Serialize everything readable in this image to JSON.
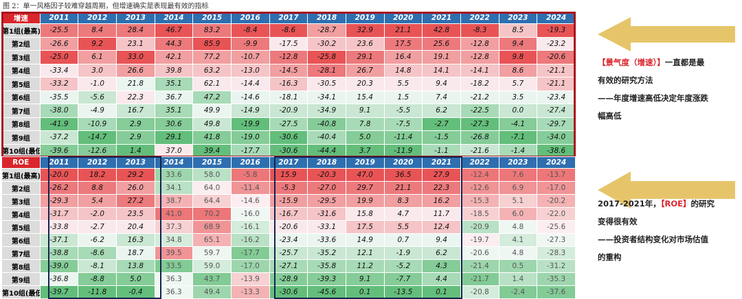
{
  "caption": "图 2：单一风格因子较难穿越周期，但增速确实是表现最有效的指标",
  "tables": [
    {
      "corner": "增速",
      "years": [
        "2011",
        "2012",
        "2013",
        "2014",
        "2015",
        "2016",
        "2017",
        "2018",
        "2019",
        "2020",
        "2021",
        "2022",
        "2023",
        "2024"
      ],
      "rows": [
        {
          "label": "第1组(最高)",
          "values": [
            "-25.5",
            "8.4",
            "28.4",
            "46.7",
            "83.2",
            "-8.4",
            "-8.6",
            "-28.7",
            "32.9",
            "21.1",
            "42.8",
            "-8.3",
            "8.5",
            "-19.3"
          ]
        },
        {
          "label": "第2组",
          "values": [
            "-26.6",
            "9.2",
            "23.1",
            "44.3",
            "85.9",
            "-9.9",
            "-17.5",
            "-30.2",
            "23.6",
            "17.5",
            "25.6",
            "-12.8",
            "9.4",
            "-23.2"
          ]
        },
        {
          "label": "第3组",
          "values": [
            "-25.0",
            "6.1",
            "33.0",
            "42.1",
            "77.2",
            "-10.7",
            "-12.8",
            "-25.8",
            "29.1",
            "16.4",
            "19.1",
            "-12.8",
            "9.8",
            "-20.6"
          ]
        },
        {
          "label": "第4组",
          "values": [
            "-33.4",
            "3.0",
            "26.6",
            "39.8",
            "63.2",
            "-13.0",
            "-14.5",
            "-28.1",
            "26.7",
            "14.8",
            "14.1",
            "-14.1",
            "8.6",
            "-21.1"
          ]
        },
        {
          "label": "第5组",
          "values": [
            "-33.2",
            "-1.0",
            "21.8",
            "35.1",
            "62.1",
            "-14.4",
            "-16.3",
            "-30.5",
            "20.3",
            "5.5",
            "9.4",
            "-18.2",
            "5.7",
            "-21.1"
          ]
        },
        {
          "label": "第6组",
          "values": [
            "-35.5",
            "-5.6",
            "22.3",
            "36.7",
            "47.2",
            "-14.6",
            "-18.1",
            "-34.1",
            "15.4",
            "1.5",
            "7.4",
            "-21.2",
            "3.5",
            "-23.4"
          ]
        },
        {
          "label": "第7组",
          "values": [
            "-38.0",
            "-4.9",
            "16.7",
            "35.1",
            "49.9",
            "-14.9",
            "-20.9",
            "-34.9",
            "9.1",
            "-5.5",
            "6.2",
            "-22.5",
            "0.0",
            "-27.4"
          ]
        },
        {
          "label": "第8组",
          "values": [
            "-41.9",
            "-10.9",
            "2.9",
            "30.6",
            "49.8",
            "-19.9",
            "-27.5",
            "-40.8",
            "7.8",
            "-7.5",
            "-2.7",
            "-27.3",
            "-4.1",
            "-29.7"
          ]
        },
        {
          "label": "第9组",
          "values": [
            "-37.2",
            "-14.7",
            "2.9",
            "29.1",
            "41.8",
            "-19.0",
            "-30.6",
            "-40.4",
            "5.0",
            "-11.4",
            "-1.5",
            "-26.8",
            "-7.1",
            "-34.0"
          ]
        },
        {
          "label": "第10组(最低)",
          "values": [
            "-39.6",
            "-12.6",
            "1.4",
            "37.0",
            "39.4",
            "-17.7",
            "-30.6",
            "-44.4",
            "3.7",
            "-11.9",
            "-1.1",
            "-21.6",
            "-1.4",
            "-38.6"
          ]
        }
      ]
    },
    {
      "corner": "ROE",
      "years": [
        "2011",
        "2012",
        "2013",
        "2014",
        "2015",
        "2016",
        "2017",
        "2018",
        "2019",
        "2020",
        "2021",
        "2022",
        "2023",
        "2024"
      ],
      "rows": [
        {
          "label": "第1组(最高)",
          "values": [
            "-20.0",
            "18.2",
            "29.2",
            "33.6",
            "58.0",
            "-5.8",
            "15.9",
            "-20.3",
            "47.0",
            "36.5",
            "27.9",
            "-12.4",
            "7.6",
            "-13.7"
          ]
        },
        {
          "label": "第2组",
          "values": [
            "-26.2",
            "8.8",
            "26.0",
            "34.1",
            "64.0",
            "-11.4",
            "-5.3",
            "-27.0",
            "29.7",
            "21.1",
            "22.3",
            "-12.6",
            "6.9",
            "-17.0"
          ]
        },
        {
          "label": "第3组",
          "values": [
            "-29.3",
            "5.4",
            "27.2",
            "38.7",
            "64.4",
            "-14.6",
            "-15.9",
            "-29.5",
            "19.9",
            "8.3",
            "16.2",
            "-15.3",
            "5.1",
            "-20.2"
          ]
        },
        {
          "label": "第4组",
          "values": [
            "-31.7",
            "-2.0",
            "23.5",
            "41.0",
            "70.2",
            "-16.0",
            "-16.7",
            "-31.6",
            "15.8",
            "4.7",
            "11.7",
            "-18.5",
            "6.0",
            "-22.0"
          ]
        },
        {
          "label": "第5组",
          "values": [
            "-33.8",
            "-2.7",
            "20.4",
            "37.3",
            "68.9",
            "-16.1",
            "-20.6",
            "-33.1",
            "17.5",
            "5.5",
            "12.4",
            "-20.9",
            "4.8",
            "-25.6"
          ]
        },
        {
          "label": "第6组",
          "values": [
            "-37.1",
            "-6.2",
            "16.3",
            "34.8",
            "65.1",
            "-16.2",
            "-23.4",
            "-33.6",
            "14.9",
            "0.7",
            "9.4",
            "-19.7",
            "4.1",
            "-27.3"
          ]
        },
        {
          "label": "第7组",
          "values": [
            "-38.8",
            "-8.6",
            "18.7",
            "39.5",
            "59.7",
            "-17.7",
            "-25.7",
            "-35.2",
            "12.1",
            "-1.9",
            "6.2",
            "-20.6",
            "4.8",
            "-28.3"
          ]
        },
        {
          "label": "第8组",
          "values": [
            "-39.0",
            "-8.1",
            "13.8",
            "33.5",
            "59.0",
            "-17.0",
            "-27.1",
            "-35.8",
            "11.2",
            "-5.2",
            "4.3",
            "-21.4",
            "0.5",
            "-31.2"
          ]
        },
        {
          "label": "第9组",
          "values": [
            "-36.8",
            "-8.8",
            "5.0",
            "36.3",
            "43.7",
            "-13.9",
            "-28.9",
            "-39.3",
            "9.1",
            "-7.7",
            "4.4",
            "-21.7",
            "1.4",
            "-35.3"
          ]
        },
        {
          "label": "第10组(最低)",
          "values": [
            "-39.7",
            "-11.8",
            "-0.4",
            "36.3",
            "49.4",
            "-13.3",
            "-30.6",
            "-45.6",
            "0.1",
            "-13.5",
            "0.1",
            "-20.8",
            "-2.4",
            "-37.6"
          ]
        }
      ]
    }
  ],
  "notes": [
    {
      "lines": [
        [
          {
            "text": "【景气度（增速）】",
            "highlight": true
          },
          {
            "text": "一直都是最"
          }
        ],
        [
          {
            "text": "有效的研究方法"
          }
        ],
        [
          {
            "text": "——年度增速高低决定年度涨跌"
          }
        ],
        [
          {
            "text": "幅高低"
          }
        ]
      ]
    },
    {
      "lines": [
        [
          {
            "text": "2017-2021年，"
          },
          {
            "text": "【ROE】",
            "highlight": true
          },
          {
            "text": "的研究"
          }
        ],
        [
          {
            "text": "变得很有效"
          }
        ],
        [
          {
            "text": "——投资者结构变化对市场估值"
          }
        ],
        [
          {
            "text": "的重构"
          }
        ]
      ]
    }
  ]
}
